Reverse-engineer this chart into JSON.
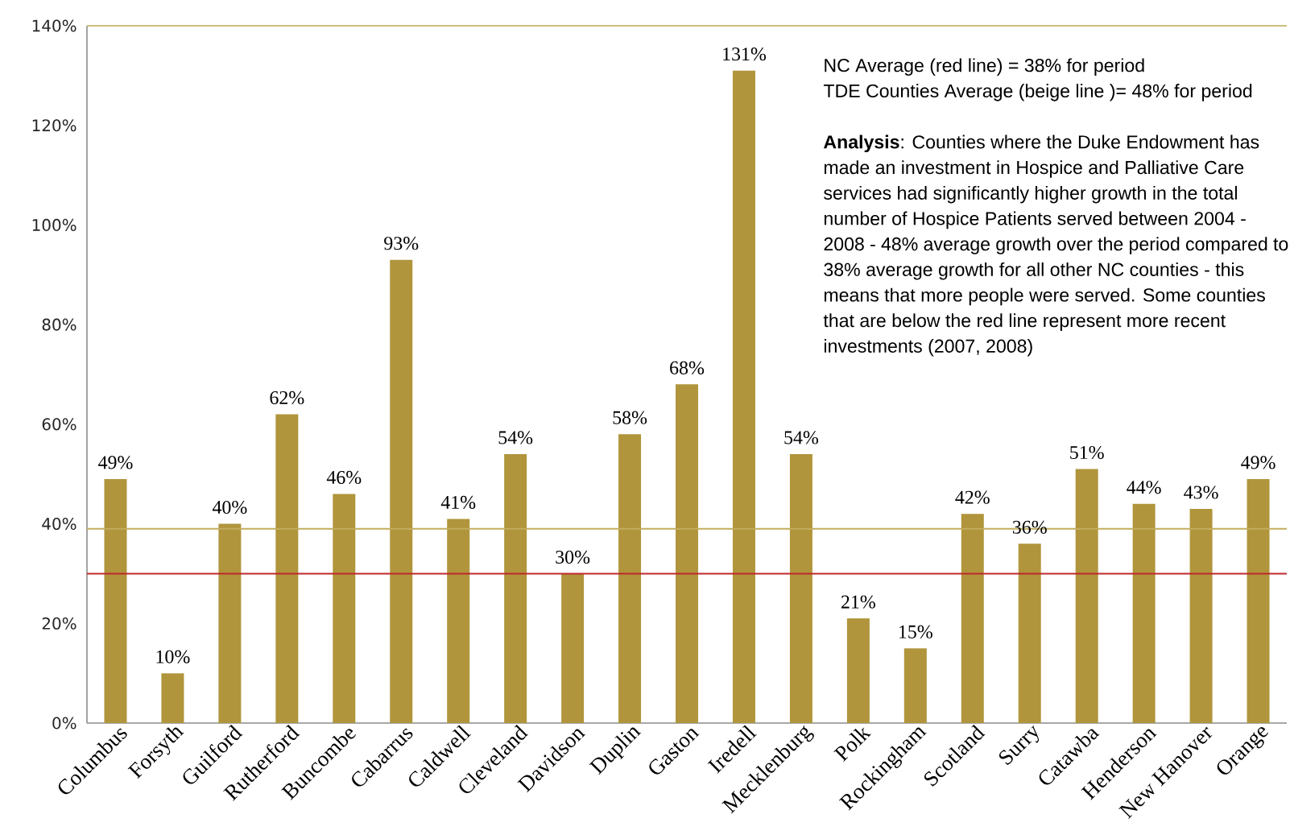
{
  "chart_data": {
    "type": "bar",
    "categories": [
      "Columbus",
      "Forsyth",
      "Guilford",
      "Rutherford",
      "Buncombe",
      "Cabarrus",
      "Caldwell",
      "Cleveland",
      "Davidson",
      "Duplin",
      "Gaston",
      "Iredell",
      "Mecklenburg",
      "Polk",
      "Rockingham",
      "Scotland",
      "Surry",
      "Catawba",
      "Henderson",
      "New Hanover",
      "Orange"
    ],
    "values": [
      49,
      10,
      40,
      62,
      46,
      93,
      41,
      54,
      30,
      58,
      68,
      131,
      54,
      21,
      15,
      42,
      36,
      51,
      44,
      43,
      49
    ],
    "value_labels": [
      "49%",
      "10%",
      "40%",
      "62%",
      "46%",
      "93%",
      "41%",
      "54%",
      "30%",
      "58%",
      "68%",
      "131%",
      "54%",
      "21%",
      "15%",
      "42%",
      "36%",
      "51%",
      "44%",
      "43%",
      "49%"
    ],
    "color": "#b0953c",
    "ylim": [
      0,
      140
    ],
    "yticks": [
      {
        "value": 0,
        "label": "0%"
      },
      {
        "value": 20,
        "label": "20%"
      },
      {
        "value": 40,
        "label": "40%"
      },
      {
        "value": 60,
        "label": "60%"
      },
      {
        "value": 80,
        "label": "80%"
      },
      {
        "value": 100,
        "label": "100%"
      },
      {
        "value": 120,
        "label": "120%"
      },
      {
        "value": 140,
        "label": "140%"
      }
    ],
    "ref_lines": [
      {
        "axis": "y",
        "value": 30,
        "color": "#c0282d"
      },
      {
        "axis": "y",
        "value": 39,
        "color": "#c2ad5e"
      }
    ],
    "annotations": [
      "NC Average (red line) = 38% for period",
      "TDE Counties Average (beige line )= 48% for period",
      "**Analysis**: Counties where the Duke Endowment has made an investment in Hospice and Palliative Care services had significantly higher growth in the total number of Hospice Patients served between 2004 - 2008 - 48% average growth over the period compared to 38% average growth for all other NC counties - this means that more people were served. Some counties that are below the red line represent more recent investments (2007, 2008)"
    ]
  }
}
